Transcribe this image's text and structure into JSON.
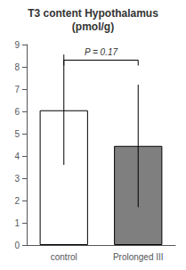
{
  "chart_data": {
    "type": "bar",
    "title": "T3 content Hypothalamus",
    "subtitle": "(pmol/g)",
    "categories": [
      "control",
      "Prolonged III"
    ],
    "values": [
      6.05,
      4.45
    ],
    "error_upper": [
      2.5,
      2.75
    ],
    "error_lower": [
      2.45,
      2.75
    ],
    "colors": [
      "#ffffff",
      "#7f7f7f"
    ],
    "ylim": [
      0,
      9
    ],
    "yticks": [
      0,
      1,
      2,
      3,
      4,
      5,
      6,
      7,
      8,
      9
    ],
    "grid": false,
    "annotations": [
      {
        "type": "bracket",
        "text": "P = 0.17",
        "x": [
          "control",
          "Prolonged III"
        ],
        "y": 8.3,
        "text_y": 8.45
      }
    ]
  }
}
